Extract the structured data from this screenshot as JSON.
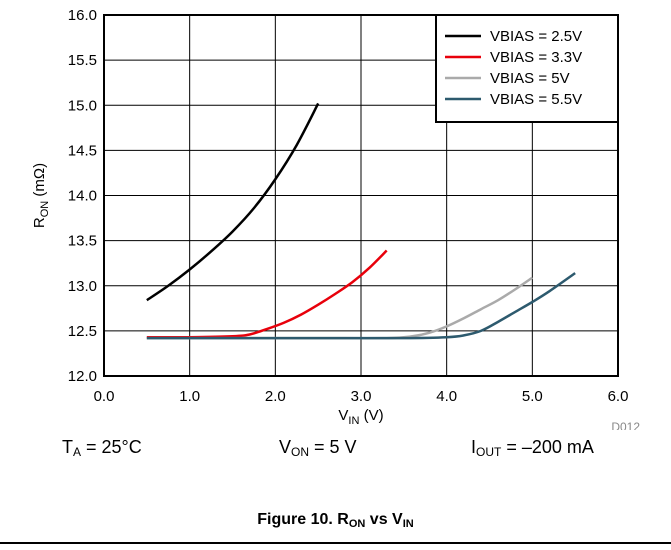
{
  "chart_data": {
    "type": "line",
    "xlabel": "V",
    "xlabel_sub": "IN",
    "xlabel_unit": " (V)",
    "ylabel": "R",
    "ylabel_sub": "ON",
    "ylabel_unit": " (mΩ)",
    "xlim": [
      0,
      6
    ],
    "ylim": [
      12.0,
      16.0
    ],
    "xticks": [
      0,
      1,
      2,
      3,
      4,
      5,
      6
    ],
    "xtick_labels": [
      "0.0",
      "1.0",
      "2.0",
      "3.0",
      "4.0",
      "5.0",
      "6.0"
    ],
    "yticks": [
      12.0,
      12.5,
      13.0,
      13.5,
      14.0,
      14.5,
      15.0,
      15.5,
      16.0
    ],
    "ytick_labels": [
      "12.0",
      "12.5",
      "13.0",
      "13.5",
      "14.0",
      "14.5",
      "15.0",
      "15.5",
      "16.0"
    ],
    "grid": true,
    "legend_position": "top-right",
    "series": [
      {
        "name": "VBIAS = 2.5V",
        "color": "#000000",
        "x": [
          0.5,
          0.75,
          1.0,
          1.25,
          1.5,
          1.75,
          2.0,
          2.25,
          2.5
        ],
        "y": [
          12.84,
          13.0,
          13.18,
          13.38,
          13.6,
          13.86,
          14.18,
          14.56,
          15.02
        ]
      },
      {
        "name": "VBIAS = 3.3V",
        "color": "#e8000b",
        "x": [
          0.5,
          1.0,
          1.5,
          1.7,
          1.9,
          2.1,
          2.3,
          2.5,
          2.7,
          2.9,
          3.1,
          3.3
        ],
        "y": [
          12.43,
          12.43,
          12.44,
          12.46,
          12.52,
          12.59,
          12.68,
          12.79,
          12.91,
          13.04,
          13.2,
          13.39
        ]
      },
      {
        "name": "VBIAS = 5V",
        "color": "#aaaaaa",
        "x": [
          0.5,
          1.5,
          2.5,
          3.3,
          3.6,
          3.8,
          4.0,
          4.2,
          4.4,
          4.6,
          4.8,
          5.0
        ],
        "y": [
          12.42,
          12.42,
          12.42,
          12.42,
          12.44,
          12.48,
          12.55,
          12.64,
          12.74,
          12.84,
          12.96,
          13.09
        ]
      },
      {
        "name": "VBIAS = 5.5V",
        "color": "#2d5a6e",
        "x": [
          0.5,
          1.5,
          2.5,
          3.5,
          4.0,
          4.2,
          4.4,
          4.6,
          4.8,
          5.0,
          5.2,
          5.5
        ],
        "y": [
          12.42,
          12.42,
          12.42,
          12.42,
          12.43,
          12.45,
          12.5,
          12.6,
          12.71,
          12.82,
          12.94,
          13.14
        ]
      }
    ]
  },
  "figure_id": "D012",
  "conditions": {
    "ta_main": "T",
    "ta_sub": "A",
    "ta_rest": " = 25°C",
    "von_main": "V",
    "von_sub": "ON",
    "von_rest": " = 5 V",
    "iout_main": "I",
    "iout_sub": "OUT",
    "iout_rest": " = –200 mA"
  },
  "caption": {
    "prefix": "Figure 10. R",
    "sub1": "ON",
    "mid": " vs V",
    "sub2": "IN"
  }
}
